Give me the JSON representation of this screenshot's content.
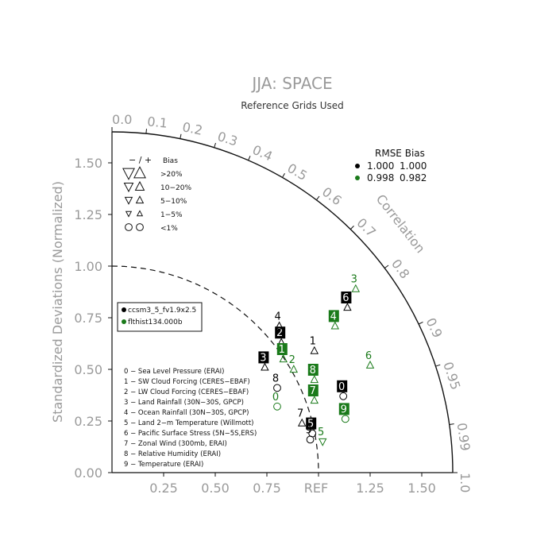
{
  "chart_data": {
    "type": "taylor",
    "title": "JJA: SPACE",
    "subtitle": "Reference Grids Used",
    "ylabel": "Standardized Deviations (Normalized)",
    "correlation_label": "Correlation",
    "ref_label": "REF",
    "rmax": 1.65,
    "x_ticks": [
      {
        "v": 0.25,
        "label": "0.25"
      },
      {
        "v": 0.5,
        "label": "0.50"
      },
      {
        "v": 0.75,
        "label": "0.75"
      },
      {
        "v": 1.25,
        "label": "1.25"
      },
      {
        "v": 1.5,
        "label": "1.50"
      }
    ],
    "y_ticks": [
      {
        "v": 0.0,
        "label": "0.00"
      },
      {
        "v": 0.25,
        "label": "0.25"
      },
      {
        "v": 0.5,
        "label": "0.50"
      },
      {
        "v": 0.75,
        "label": "0.75"
      },
      {
        "v": 1.0,
        "label": "1.00"
      },
      {
        "v": 1.25,
        "label": "1.25"
      },
      {
        "v": 1.5,
        "label": "1.50"
      }
    ],
    "correlation_ticks": [
      {
        "v": 0.0,
        "label": "0.0"
      },
      {
        "v": 0.1,
        "label": "0.1"
      },
      {
        "v": 0.2,
        "label": "0.2"
      },
      {
        "v": 0.3,
        "label": "0.3"
      },
      {
        "v": 0.4,
        "label": "0.4"
      },
      {
        "v": 0.5,
        "label": "0.5"
      },
      {
        "v": 0.6,
        "label": "0.6"
      },
      {
        "v": 0.7,
        "label": "0.7"
      },
      {
        "v": 0.8,
        "label": "0.8"
      },
      {
        "v": 0.9,
        "label": "0.9"
      },
      {
        "v": 0.95,
        "label": "0.95"
      },
      {
        "v": 0.99,
        "label": "0.99"
      },
      {
        "v": 1.0,
        "label": "1.0"
      }
    ],
    "bias_legend": {
      "header_signs": "− / +",
      "header_bias": "Bias",
      "rows": [
        ">20%",
        "10−20%",
        "5−10%",
        "1−5%",
        "<1%"
      ]
    },
    "summary": {
      "header": "RMSE Bias",
      "rows": [
        {
          "color": "#000000",
          "rmse": "1.000",
          "bias": "1.000"
        },
        {
          "color": "#1a7a1a",
          "rmse": "0.998",
          "bias": "0.982"
        }
      ]
    },
    "case_legend": [
      {
        "name": "ccsm3_5_fv1.9x2.5",
        "color": "#000000"
      },
      {
        "name": "flthist134.000b",
        "color": "#1a7a1a"
      }
    ],
    "variables": [
      "0 − Sea Level Pressure (ERAI)",
      "1 − SW Cloud Forcing (CERES−EBAF)",
      "2 − LW Cloud Forcing (CERES−EBAF)",
      "3 − Land Rainfall (30N−30S, GPCP)",
      "4 − Ocean Rainfall (30N−30S, GPCP)",
      "5 − Land 2−m Temperature (Willmott)",
      "6 − Pacific Surface Stress (5N−5S,ERS)",
      "7 − Zonal Wind (300mb, ERAI)",
      "8 − Relative Humidity (ERAI)",
      "9 − Temperature (ERAI)"
    ],
    "series": [
      {
        "name": "ccsm3_5_fv1.9x2.5",
        "color": "#000000",
        "points": [
          {
            "id": "0",
            "x": 1.12,
            "y": 0.37,
            "boxed": true,
            "bias": "circle"
          },
          {
            "id": "1",
            "x": 0.98,
            "y": 0.59,
            "boxed": false,
            "bias": "up"
          },
          {
            "id": "2",
            "x": 0.82,
            "y": 0.63,
            "boxed": true,
            "bias": "up"
          },
          {
            "id": "3",
            "x": 0.74,
            "y": 0.51,
            "boxed": true,
            "bias": "up"
          },
          {
            "id": "4",
            "x": 0.81,
            "y": 0.71,
            "boxed": false,
            "bias": "up"
          },
          {
            "id": "5",
            "x": 0.97,
            "y": 0.19,
            "boxed": true,
            "bias": "circle"
          },
          {
            "id": "6",
            "x": 1.14,
            "y": 0.8,
            "boxed": true,
            "bias": "up"
          },
          {
            "id": "7",
            "x": 0.92,
            "y": 0.24,
            "boxed": false,
            "bias": "up"
          },
          {
            "id": "8",
            "x": 0.8,
            "y": 0.41,
            "boxed": false,
            "bias": "circle"
          },
          {
            "id": "9",
            "x": 0.96,
            "y": 0.16,
            "boxed": false,
            "bias": "circle"
          }
        ]
      },
      {
        "name": "flthist134.000b",
        "color": "#1a7a1a",
        "points": [
          {
            "id": "0",
            "x": 0.8,
            "y": 0.32,
            "boxed": false,
            "bias": "circle"
          },
          {
            "id": "1",
            "x": 0.83,
            "y": 0.55,
            "boxed": true,
            "bias": "up"
          },
          {
            "id": "2",
            "x": 0.88,
            "y": 0.5,
            "boxed": false,
            "bias": "up"
          },
          {
            "id": "3",
            "x": 1.18,
            "y": 0.89,
            "boxed": false,
            "bias": "up"
          },
          {
            "id": "4",
            "x": 1.08,
            "y": 0.71,
            "boxed": true,
            "bias": "up"
          },
          {
            "id": "5",
            "x": 1.02,
            "y": 0.15,
            "boxed": false,
            "bias": "down"
          },
          {
            "id": "6",
            "x": 1.25,
            "y": 0.52,
            "boxed": false,
            "bias": "up"
          },
          {
            "id": "7",
            "x": 0.98,
            "y": 0.35,
            "boxed": true,
            "bias": "up"
          },
          {
            "id": "8",
            "x": 0.98,
            "y": 0.45,
            "boxed": true,
            "bias": "up"
          },
          {
            "id": "9",
            "x": 1.13,
            "y": 0.26,
            "boxed": true,
            "bias": "circle"
          }
        ]
      }
    ]
  }
}
